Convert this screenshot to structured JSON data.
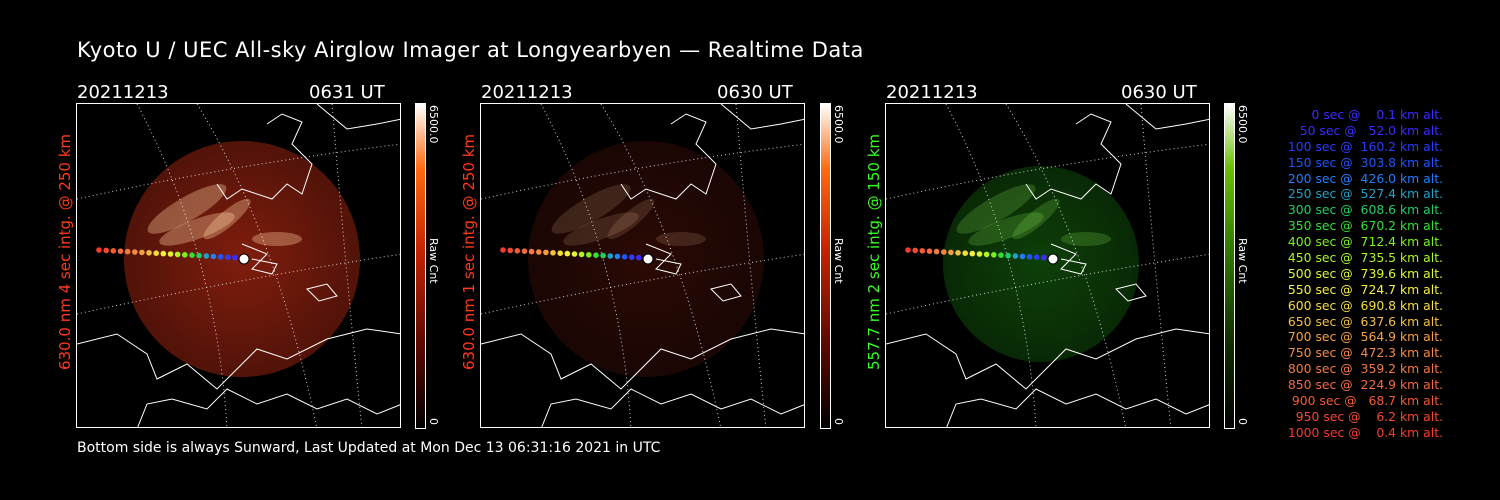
{
  "header": {
    "title": "Kyoto U / UEC All-sky Airglow Imager at Longyearbyen — Realtime Data"
  },
  "panels": [
    {
      "date": "20211213",
      "time": "0631 UT",
      "ylabel": "630.0 nm 4 sec intg. @ 250 km",
      "cbar_max": "6500.0",
      "cbar_min": "0",
      "cbar_label": "Raw Cnt",
      "color": "#ff3a1a",
      "cbar_color": "#ff5a10",
      "brightness": 0.9
    },
    {
      "date": "20211213",
      "time": "0630 UT",
      "ylabel": "630.0 nm 1 sec intg. @ 250 km",
      "cbar_max": "6500.0",
      "cbar_min": "0",
      "cbar_label": "Raw Cnt",
      "color": "#ff3a1a",
      "cbar_color": "#ff5a10",
      "brightness": 0.3
    },
    {
      "date": "20211213",
      "time": "0630 UT",
      "ylabel": "557.7 nm 2 sec intg. @ 150 km",
      "cbar_max": "6500.0",
      "cbar_min": "0",
      "cbar_label": "Raw Cnt",
      "color": "#35ff20",
      "cbar_color": "#44cc00",
      "brightness": 0.45
    }
  ],
  "legend": [
    {
      "text": "   0 sec @    0.1 km alt.",
      "color": "#3a2bff"
    },
    {
      "text": "  50 sec @   52.0 km alt.",
      "color": "#3a2bff"
    },
    {
      "text": " 100 sec @  160.2 km alt.",
      "color": "#2a3cff"
    },
    {
      "text": " 150 sec @  303.8 km alt.",
      "color": "#1f55ff"
    },
    {
      "text": " 200 sec @  426.0 km alt.",
      "color": "#1f7fff"
    },
    {
      "text": " 250 sec @  527.4 km alt.",
      "color": "#22a0c8"
    },
    {
      "text": " 300 sec @  608.6 km alt.",
      "color": "#22cc66"
    },
    {
      "text": " 350 sec @  670.2 km alt.",
      "color": "#33e030"
    },
    {
      "text": " 400 sec @  712.4 km alt.",
      "color": "#7af020"
    },
    {
      "text": " 450 sec @  735.5 km alt.",
      "color": "#b0f522"
    },
    {
      "text": " 500 sec @  739.6 km alt.",
      "color": "#e0f530"
    },
    {
      "text": " 550 sec @  724.7 km alt.",
      "color": "#f5f040"
    },
    {
      "text": " 600 sec @  690.8 km alt.",
      "color": "#f5dd40"
    },
    {
      "text": " 650 sec @  637.6 km alt.",
      "color": "#f5c040"
    },
    {
      "text": " 700 sec @  564.9 km alt.",
      "color": "#f5a040"
    },
    {
      "text": " 750 sec @  472.3 km alt.",
      "color": "#f58a40"
    },
    {
      "text": " 800 sec @  359.2 km alt.",
      "color": "#f57a40"
    },
    {
      "text": " 850 sec @  224.9 km alt.",
      "color": "#f56a40"
    },
    {
      "text": " 900 sec @   68.7 km alt.",
      "color": "#f55a30"
    },
    {
      "text": " 950 sec @    6.2 km alt.",
      "color": "#f54a30"
    },
    {
      "text": "1000 sec @    0.4 km alt.",
      "color": "#f53a30"
    }
  ],
  "footer": {
    "text": "Bottom side is always Sunward, Last Updated at Mon Dec 13 06:31:16 2021 in UTC"
  }
}
